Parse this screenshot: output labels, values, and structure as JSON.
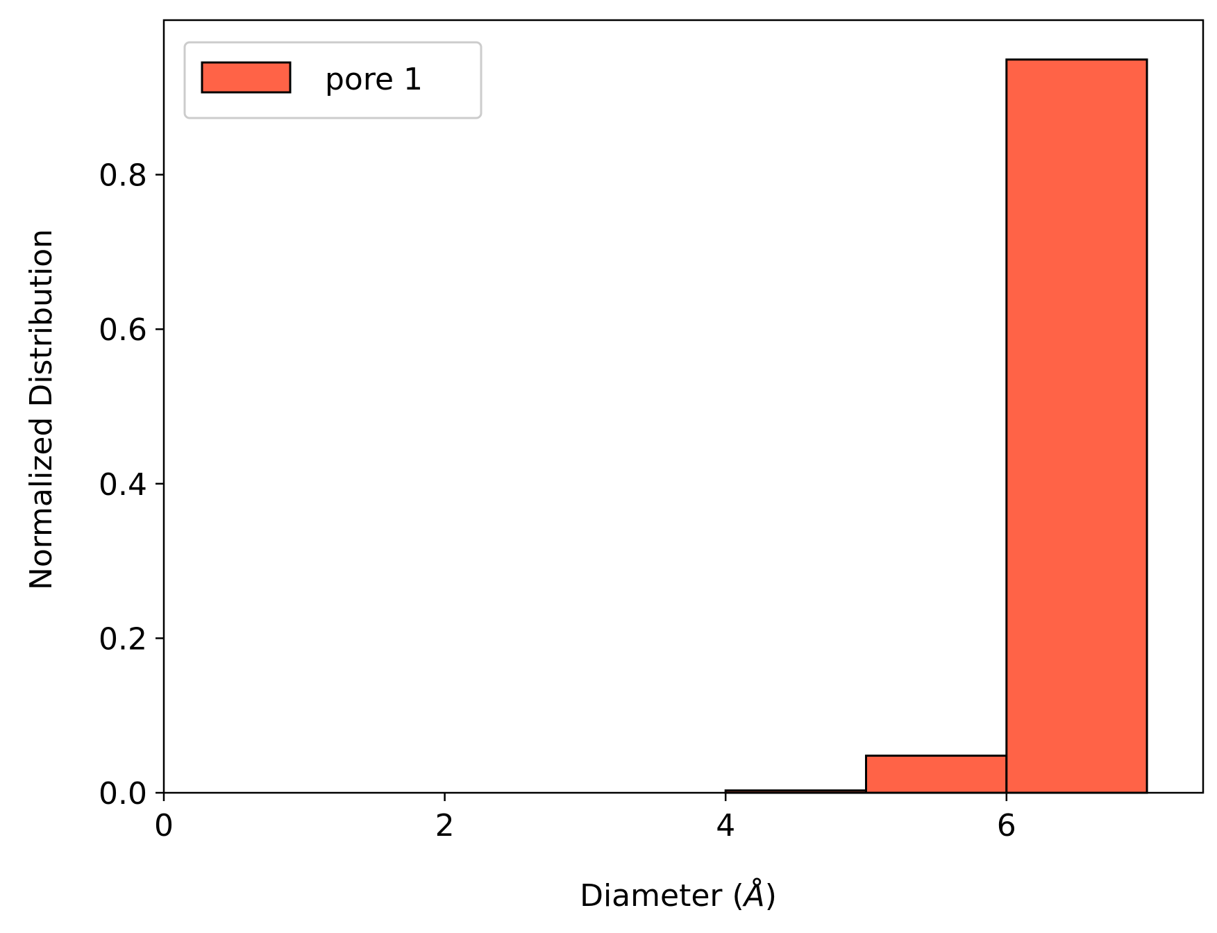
{
  "chart_data": {
    "type": "bar",
    "title": "",
    "xlabel": "Diameter (",
    "xlabel_symbol": "Å",
    "xlabel_suffix": ")",
    "ylabel": "Normalized Distribution",
    "xlim": [
      0,
      7.4
    ],
    "ylim": [
      0,
      1.0
    ],
    "xticks": [
      0,
      2,
      4,
      6
    ],
    "yticks": [
      0.0,
      0.2,
      0.4,
      0.6,
      0.8
    ],
    "xtick_labels": [
      "0",
      "2",
      "4",
      "6"
    ],
    "ytick_labels": [
      "0.0",
      "0.2",
      "0.4",
      "0.6",
      "0.8"
    ],
    "grid": false,
    "legend_position": "top-left",
    "series": [
      {
        "name": "pore 1",
        "color": "#ff6347",
        "edge_color": "#000000",
        "bins": [
          {
            "x0": 4,
            "x1": 5,
            "value": 0.003
          },
          {
            "x0": 5,
            "x1": 6,
            "value": 0.048
          },
          {
            "x0": 6,
            "x1": 7,
            "value": 0.949
          }
        ]
      }
    ]
  }
}
